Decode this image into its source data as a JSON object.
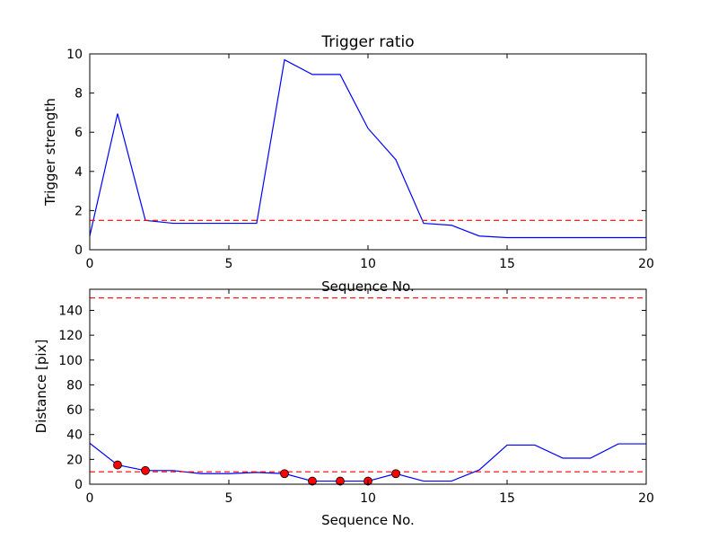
{
  "chart_data": [
    {
      "type": "line",
      "title": "Trigger ratio",
      "xlabel": "Sequence No.",
      "ylabel": "Trigger strength",
      "xlim": [
        0,
        20
      ],
      "ylim": [
        0,
        10
      ],
      "xticks": [
        "0",
        "5",
        "10",
        "15",
        "20"
      ],
      "yticks": [
        "0",
        "2",
        "4",
        "6",
        "8",
        "10"
      ],
      "grid": false,
      "series": [
        {
          "color": "#0000ff",
          "style": "solid",
          "x": [
            0,
            1,
            2,
            3,
            4,
            5,
            6,
            7,
            8,
            9,
            10,
            11,
            12,
            13,
            14,
            15,
            16,
            17,
            18,
            19,
            20
          ],
          "y": [
            0.7,
            6.95,
            1.5,
            1.35,
            1.35,
            1.35,
            1.35,
            9.7,
            8.95,
            8.95,
            6.2,
            4.6,
            1.35,
            1.25,
            0.7,
            0.62,
            0.62,
            0.62,
            0.62,
            0.62,
            0.62
          ]
        },
        {
          "color": "#ff0000",
          "style": "dashed",
          "x": [
            0,
            20
          ],
          "y": [
            1.5,
            1.5
          ]
        }
      ]
    },
    {
      "type": "line",
      "title": "",
      "xlabel": "Sequence No.",
      "ylabel": "Distance [pix]",
      "xlim": [
        0,
        20
      ],
      "ylim": [
        0,
        157
      ],
      "xticks": [
        "0",
        "5",
        "10",
        "15",
        "20"
      ],
      "yticks": [
        "0",
        "20",
        "40",
        "60",
        "80",
        "100",
        "120",
        "140"
      ],
      "grid": false,
      "series": [
        {
          "color": "#0000ff",
          "style": "solid",
          "x": [
            0,
            1,
            2,
            3,
            4,
            5,
            6,
            7,
            8,
            9,
            10,
            11,
            12,
            13,
            14,
            15,
            16,
            17,
            18,
            19,
            20
          ],
          "y": [
            33,
            15.5,
            11,
            11,
            8.5,
            8.5,
            9.5,
            8.5,
            2.5,
            2.5,
            2.5,
            8.5,
            2.5,
            2.5,
            11.5,
            31.5,
            31.5,
            21,
            21,
            32.5,
            32.5
          ]
        },
        {
          "color": "#ff0000",
          "style": "dashed",
          "x": [
            0,
            20
          ],
          "y": [
            150,
            150
          ]
        },
        {
          "color": "#ff0000",
          "style": "dashed",
          "x": [
            0,
            20
          ],
          "y": [
            10,
            10
          ]
        },
        {
          "color": "#ff0000",
          "style": "markers",
          "x": [
            1,
            2,
            7,
            8,
            9,
            10,
            11
          ],
          "y": [
            15.5,
            11,
            8.5,
            2.5,
            2.5,
            2.5,
            8.5
          ]
        }
      ]
    }
  ]
}
